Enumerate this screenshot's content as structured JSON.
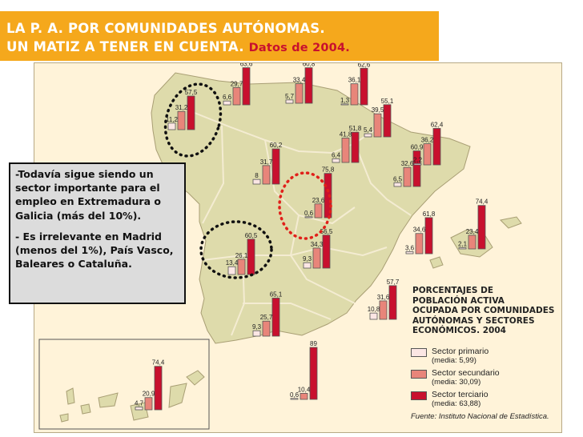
{
  "title": {
    "line1": "LA P. A. POR COMUNIDADES AUTÓNOMAS.",
    "line2": "UN MATIZ A TENER EN CUENTA.",
    "date": "Datos de 2004."
  },
  "note": {
    "p1_dash": "-",
    "p1": "Todavía sigue siendo un sector importante para el empleo en Extremadura o Galicia (más del 10%).",
    "p2_dash": "- ",
    "p2": "Es irrelevante en Madrid (menos del 1%), País Vasco, Baleares o Cataluña."
  },
  "legend": {
    "title": [
      "PORCENTAJES DE",
      "POBLACIÓN ACTIVA",
      "OCUPADA POR COMUNIDADES",
      "AUTÓNOMAS Y SECTORES",
      "ECONÓMICOS. 2004"
    ],
    "items": [
      {
        "label": "Sector primario",
        "sub": "(media: 5,99)",
        "color": "#fbe6e4"
      },
      {
        "label": "Sector secundario",
        "sub": "(media: 30,09)",
        "color": "#e8857a"
      },
      {
        "label": "Sector terciario",
        "sub": "(media: 63,88)",
        "color": "#c8102e"
      }
    ],
    "source": "Fuente: Instituto Nacional de Estadística."
  },
  "colors": {
    "title_bg": "#f5a81c",
    "primary": "#fbe6e4",
    "secondary": "#e8857a",
    "tertiary": "#c8102e",
    "land": "#dedbab",
    "sea": "#fff3d9",
    "circle_black": "#111111",
    "circle_red": "#e0201a"
  },
  "chart_data": {
    "type": "bar",
    "unit": "%",
    "series_names": [
      "Sector primario",
      "Sector secundario",
      "Sector terciario"
    ],
    "regions": [
      {
        "values": [
          11.2,
          31.2,
          57.5
        ]
      },
      {
        "values": [
          6.6,
          29.7,
          63.6
        ]
      },
      {
        "values": [
          5.7,
          33.4,
          60.8
        ]
      },
      {
        "values": [
          1.3,
          36.1,
          62.6
        ]
      },
      {
        "values": [
          5.4,
          39.5,
          55.1
        ]
      },
      {
        "values": [
          6.4,
          41.8,
          51.8
        ]
      },
      {
        "values": [
          8,
          31.7,
          60.2
        ]
      },
      {
        "values": [
          6.5,
          32.6,
          60.9
        ]
      },
      {
        "values": [
          2.2,
          36.2,
          62.4
        ]
      },
      {
        "values": [
          0.6,
          23.6,
          75.8
        ]
      },
      {
        "values": [
          2.1,
          23.4,
          74.4
        ]
      },
      {
        "values": [
          3.6,
          34.6,
          61.8
        ]
      },
      {
        "values": [
          13.4,
          26.1,
          60.5
        ]
      },
      {
        "values": [
          9.3,
          34.3,
          56.5
        ]
      },
      {
        "values": [
          9.3,
          25.7,
          65.1
        ]
      },
      {
        "values": [
          10.8,
          31.6,
          57.7
        ]
      },
      {
        "values": [
          4.7,
          20.9,
          74.4
        ]
      },
      {
        "values": [
          0.6,
          10.4,
          89
        ]
      }
    ]
  }
}
